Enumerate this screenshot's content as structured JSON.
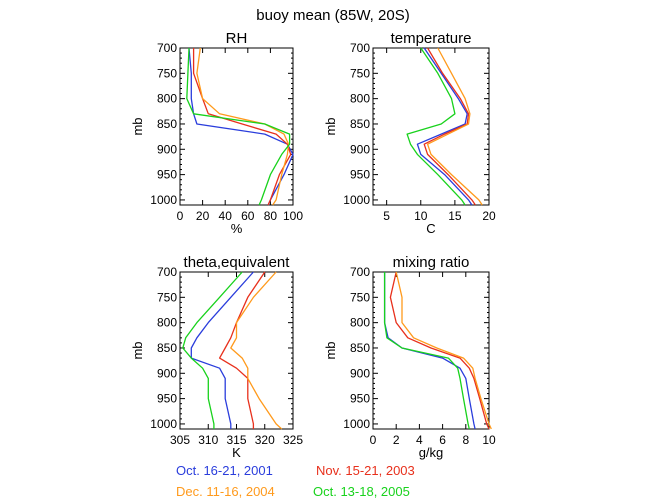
{
  "title": "buoy mean (85W, 20S)",
  "legend": [
    {
      "label": "Oct. 16-21, 2001",
      "color": "#2a3ddc"
    },
    {
      "label": "Nov. 15-21, 2003",
      "color": "#e8301c"
    },
    {
      "label": "Dec. 11-16, 2004",
      "color": "#ff9a1c"
    },
    {
      "label": "Oct. 13-18, 2005",
      "color": "#18d21c"
    }
  ],
  "chart_data": [
    {
      "type": "line",
      "title": "RH",
      "xlabel": "%",
      "ylabel": "mb",
      "xlim": [
        0,
        100
      ],
      "ylim": [
        1010,
        700
      ],
      "xticks": [
        0,
        20,
        40,
        60,
        80,
        100
      ],
      "yticks": [
        700,
        750,
        800,
        850,
        900,
        950,
        1000
      ],
      "y": [
        700,
        750,
        800,
        830,
        850,
        870,
        890,
        910,
        950,
        1000,
        1010
      ],
      "series": [
        {
          "name": "Oct. 16-21, 2001",
          "values": [
            8,
            10,
            10,
            12,
            15,
            75,
            95,
            100,
            92,
            80,
            78
          ]
        },
        {
          "name": "Nov. 15-21, 2003",
          "values": [
            12,
            12,
            20,
            25,
            55,
            85,
            95,
            98,
            88,
            80,
            78
          ]
        },
        {
          "name": "Dec. 11-16, 2004",
          "values": [
            18,
            15,
            20,
            35,
            75,
            92,
            96,
            95,
            90,
            85,
            82
          ]
        },
        {
          "name": "Oct. 13-18, 2005",
          "values": [
            8,
            7,
            6,
            12,
            75,
            97,
            97,
            90,
            80,
            72,
            70
          ]
        }
      ]
    },
    {
      "type": "line",
      "title": "temperature",
      "xlabel": "C",
      "ylabel": "mb",
      "xlim": [
        3,
        20
      ],
      "ylim": [
        1010,
        700
      ],
      "xticks": [
        5,
        10,
        15,
        20
      ],
      "yticks": [
        700,
        750,
        800,
        850,
        900,
        950,
        1000
      ],
      "y": [
        700,
        750,
        800,
        830,
        850,
        870,
        890,
        910,
        950,
        1000,
        1010
      ],
      "series": [
        {
          "name": "Oct. 16-21, 2001",
          "values": [
            10.5,
            13,
            15.5,
            16.8,
            16.5,
            13,
            9.5,
            10,
            13.5,
            17,
            17.5
          ]
        },
        {
          "name": "Nov. 15-21, 2003",
          "values": [
            11,
            13.2,
            15.8,
            17,
            16.8,
            13.5,
            10.5,
            11,
            14,
            17.5,
            18
          ]
        },
        {
          "name": "Dec. 11-16, 2004",
          "values": [
            12.5,
            14.5,
            16.5,
            17.2,
            17,
            14,
            11,
            11.5,
            14.5,
            18.5,
            19
          ]
        },
        {
          "name": "Oct. 13-18, 2005",
          "values": [
            10,
            12.5,
            14.5,
            15,
            13,
            8,
            8.5,
            9.5,
            12.5,
            16,
            16.5
          ]
        }
      ]
    },
    {
      "type": "line",
      "title": "theta,equivalent",
      "xlabel": "K",
      "ylabel": "mb",
      "xlim": [
        305,
        325
      ],
      "ylim": [
        1010,
        700
      ],
      "xticks": [
        305,
        310,
        315,
        320,
        325
      ],
      "yticks": [
        700,
        750,
        800,
        850,
        900,
        950,
        1000
      ],
      "y": [
        700,
        750,
        800,
        830,
        850,
        870,
        890,
        910,
        950,
        1000,
        1010
      ],
      "series": [
        {
          "name": "Oct. 16-21, 2001",
          "values": [
            318,
            314,
            310,
            308,
            307,
            307,
            312,
            313,
            313,
            314,
            314
          ]
        },
        {
          "name": "Nov. 15-21, 2003",
          "values": [
            320,
            317,
            315,
            314,
            313,
            312,
            315,
            317,
            317,
            318,
            318
          ]
        },
        {
          "name": "Dec. 11-16, 2004",
          "values": [
            322,
            318,
            315,
            315,
            314,
            316,
            317,
            317,
            319,
            322,
            323
          ]
        },
        {
          "name": "Oct. 13-18, 2005",
          "values": [
            316,
            312,
            308,
            306,
            305.5,
            307,
            309,
            310,
            310,
            311,
            311
          ]
        }
      ]
    },
    {
      "type": "line",
      "title": "mixing ratio",
      "xlabel": "g/kg",
      "ylabel": "mb",
      "xlim": [
        0,
        10
      ],
      "ylim": [
        1010,
        700
      ],
      "xticks": [
        0,
        2,
        4,
        6,
        8,
        10
      ],
      "yticks": [
        700,
        750,
        800,
        850,
        900,
        950,
        1000
      ],
      "y": [
        700,
        750,
        800,
        830,
        850,
        870,
        890,
        910,
        950,
        1000,
        1010
      ],
      "series": [
        {
          "name": "Oct. 16-21, 2001",
          "values": [
            1,
            1,
            1,
            1.3,
            2.5,
            6,
            7.5,
            8,
            8.3,
            8.7,
            8.8
          ]
        },
        {
          "name": "Nov. 15-21, 2003",
          "values": [
            2,
            1.5,
            2,
            3,
            5,
            7.5,
            8.3,
            8.7,
            9.2,
            9.8,
            10
          ]
        },
        {
          "name": "Dec. 11-16, 2004",
          "values": [
            2,
            2.5,
            2.5,
            3.5,
            5.5,
            7.8,
            8.6,
            8.8,
            9.3,
            10,
            10.2
          ]
        },
        {
          "name": "Oct. 13-18, 2005",
          "values": [
            1,
            1,
            1,
            1.2,
            2.5,
            6.5,
            7.3,
            7.5,
            7.8,
            8.2,
            8.3
          ]
        }
      ]
    }
  ]
}
